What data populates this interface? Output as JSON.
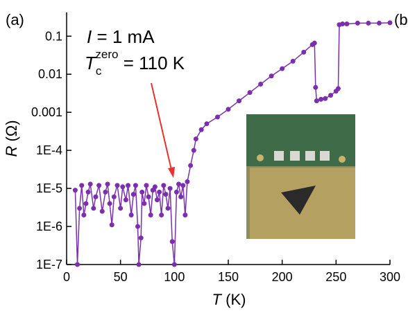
{
  "chart_data": {
    "type": "line",
    "panel_label": "(a)",
    "next_panel_label": "(b",
    "annotation_current": {
      "symbol": "I",
      "text": " = 1 mA"
    },
    "annotation_tc": {
      "symbol": "T",
      "subscript": "c",
      "superscript": "zero",
      "text": " = 110 K"
    },
    "x_label": {
      "symbol": "T",
      "text": " (K)"
    },
    "y_label": {
      "symbol": "R",
      "text": " (Ω)"
    },
    "log_y": true,
    "xlim": [
      0,
      300
    ],
    "xticks": [
      0,
      50,
      100,
      150,
      200,
      250,
      300
    ],
    "ylim": [
      1e-07,
      0.42
    ],
    "yticks": [
      {
        "value": 1e-07,
        "label": "1E-7"
      },
      {
        "value": 1e-06,
        "label": "1E-6"
      },
      {
        "value": 1e-05,
        "label": "1E-5"
      },
      {
        "value": 0.0001,
        "label": "1E-4"
      },
      0.001,
      0.01,
      0.1
    ],
    "series": [
      {
        "color": "#7b2fae",
        "x": [
          8,
          10,
          12,
          14,
          16,
          18,
          20,
          22,
          25,
          27,
          30,
          33,
          36,
          38,
          40,
          42,
          44,
          47,
          50,
          52,
          55,
          57,
          60,
          62,
          64,
          66,
          67,
          69,
          70,
          72,
          74,
          76,
          78,
          80,
          82,
          84,
          86,
          88,
          90,
          92,
          94,
          96,
          98,
          100,
          102,
          104,
          106,
          108,
          110,
          112,
          115,
          118,
          120,
          125,
          130,
          140,
          150,
          160,
          170,
          180,
          190,
          200,
          210,
          220,
          228,
          230,
          231,
          232,
          236,
          240,
          245,
          250,
          252,
          253,
          256,
          260,
          270,
          280,
          290,
          300
        ],
        "values": [
          9e-06,
          1e-07,
          3e-06,
          1.2e-05,
          2e-06,
          4e-06,
          8e-06,
          1.3e-05,
          3e-06,
          6e-06,
          1.2e-05,
          2.5e-06,
          8e-06,
          1.3e-05,
          4e-06,
          1.1e-06,
          6e-06,
          1.2e-05,
          3e-06,
          1.1e-05,
          5e-06,
          1.2e-05,
          2e-06,
          7e-06,
          1.2e-05,
          1e-06,
          1e-07,
          5e-07,
          8e-06,
          4e-06,
          1.2e-05,
          6e-06,
          2e-06,
          9e-06,
          1.1e-05,
          5e-06,
          8e-06,
          2e-06,
          1.2e-05,
          7e-06,
          3e-06,
          1e-05,
          4e-07,
          1e-07,
          8e-06,
          1.3e-05,
          6e-06,
          1.2e-05,
          2e-06,
          1.5e-05,
          4e-05,
          0.0001,
          0.0002,
          0.00035,
          0.0005,
          0.00075,
          0.0012,
          0.002,
          0.0033,
          0.0055,
          0.009,
          0.014,
          0.022,
          0.038,
          0.06,
          0.066,
          0.0045,
          0.002,
          0.0022,
          0.0023,
          0.0028,
          0.0036,
          0.0042,
          0.2,
          0.21,
          0.21,
          0.22,
          0.22,
          0.22,
          0.225
        ]
      }
    ]
  }
}
